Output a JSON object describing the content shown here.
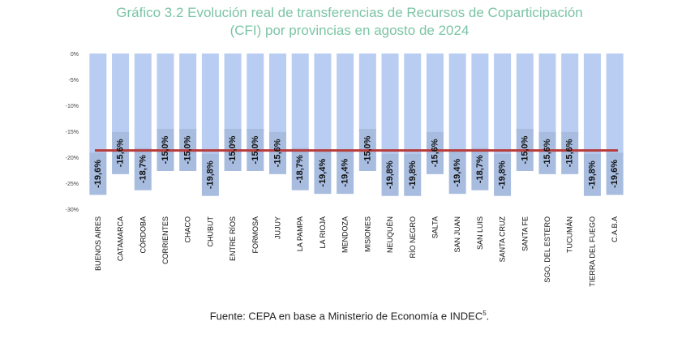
{
  "title_line1": "Gráfico 3.2 Evolución real de transferencias de Recursos de Coparticipación",
  "title_line2": "(CFI) por provincias en agosto de 2024",
  "source": "Fuente: CEPA en base a Ministerio de Economía e INDEC",
  "source_sup": "5",
  "source_end": ".",
  "colors": {
    "bar": "#b9cdf2",
    "label_box": "#a7bcdf",
    "reference_line": "#b73b3b",
    "title": "#7bc4a6"
  },
  "chart_data": {
    "type": "bar",
    "title": "",
    "xlabel": "",
    "ylabel": "",
    "ylim": [
      -30,
      0
    ],
    "yticks": [
      "0%",
      "-5%",
      "-10%",
      "-15%",
      "-20%",
      "-25%",
      "-30%"
    ],
    "ytick_values": [
      0,
      -5,
      -10,
      -15,
      -20,
      -25,
      -30
    ],
    "grid": false,
    "reference_line": -18.7,
    "categories": [
      "BUENOS AIRES",
      "CATAMARCA",
      "CÓRDOBA",
      "CORRIENTES",
      "CHACO",
      "CHUBUT",
      "ENTRE RÍOS",
      "FORMOSA",
      "JUJUY",
      "LA PAMPA",
      "LA RIOJA",
      "MENDOZA",
      "MISIONES",
      "NEUQUÉN",
      "RÍO NEGRO",
      "SALTA",
      "SAN JUAN",
      "SAN LUIS",
      "SANTA CRUZ",
      "SANTA FE",
      "SGO. DEL ESTERO",
      "TUCUMÁN",
      "TIERRA DEL FUEGO",
      "C.A.B.A"
    ],
    "values": [
      -19.6,
      -15.6,
      -18.7,
      -15.0,
      -15.0,
      -19.8,
      -15.0,
      -15.0,
      -15.6,
      -18.7,
      -19.4,
      -19.4,
      -15.0,
      -19.8,
      -19.8,
      -15.6,
      -19.4,
      -18.7,
      -19.8,
      -15.0,
      -15.6,
      -15.6,
      -19.8,
      -19.6
    ],
    "data_labels": [
      "-19,6%",
      "-15,6%",
      "-18,7%",
      "-15,0%",
      "-15,0%",
      "-19,8%",
      "-15,0%",
      "-15,0%",
      "-15,6%",
      "-18,7%",
      "-19,4%",
      "-19,4%",
      "-15,0%",
      "-19,8%",
      "-19,8%",
      "-15,6%",
      "-19,4%",
      "-18,7%",
      "-19,8%",
      "-15,0%",
      "-15,6%",
      "-15,6%",
      "-19,8%",
      "-19,6%"
    ]
  }
}
